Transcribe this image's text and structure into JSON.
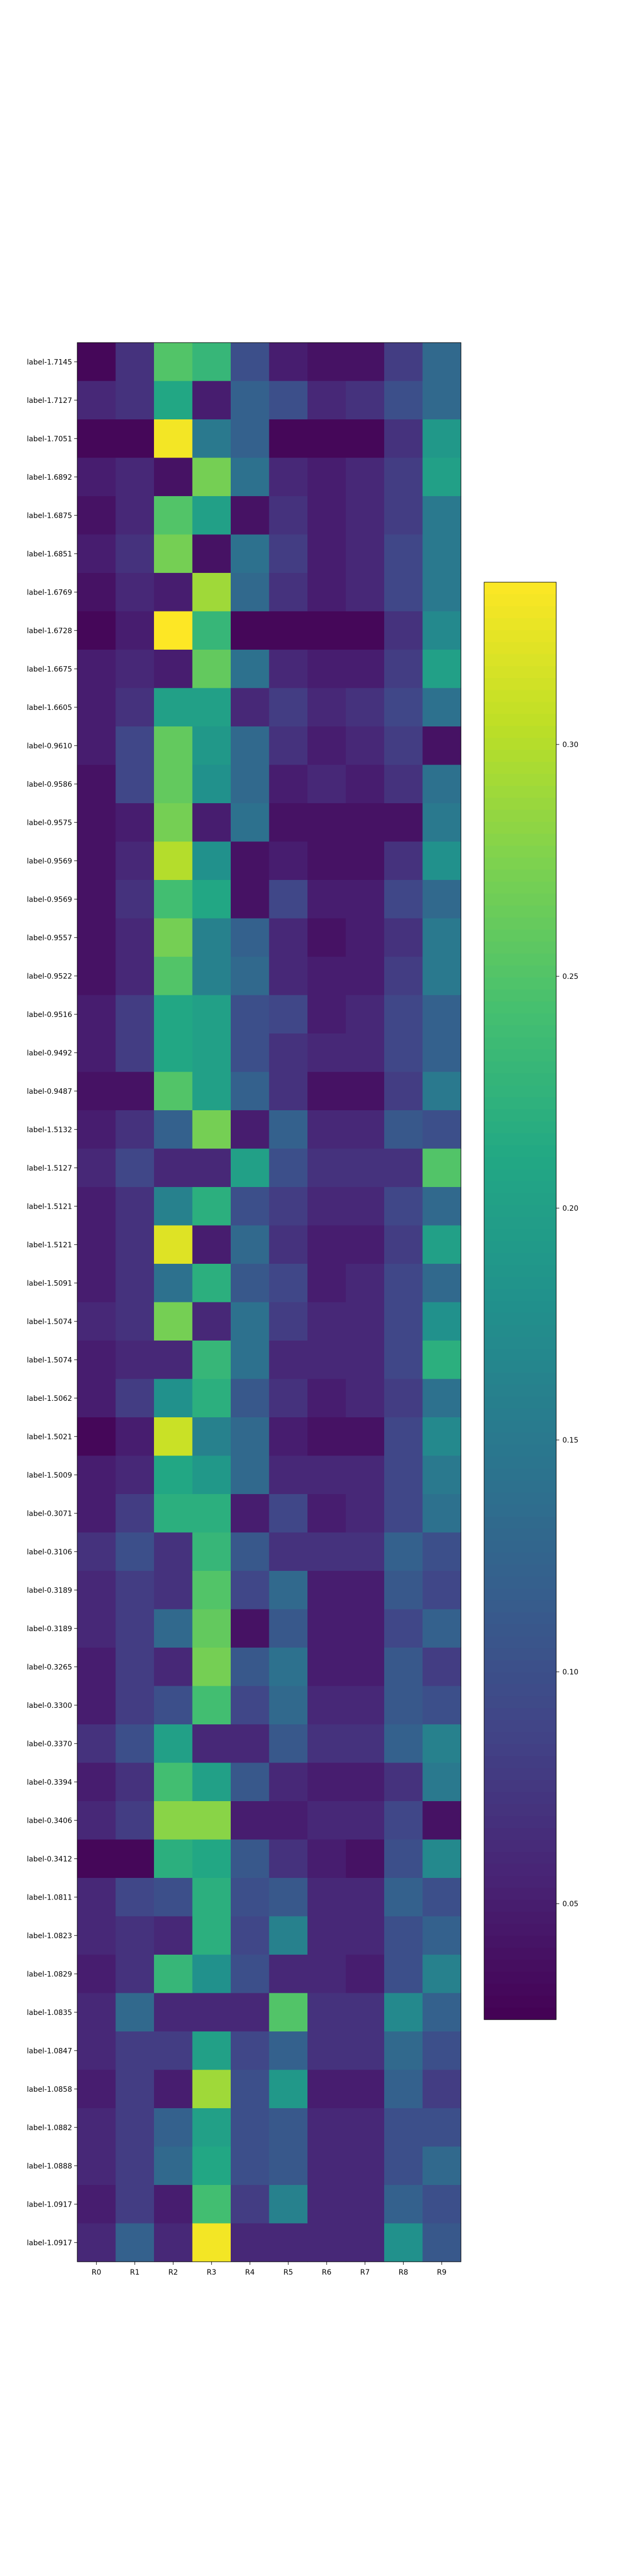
{
  "chart_data": {
    "type": "heatmap",
    "colormap": "viridis",
    "columns": [
      "R0",
      "R1",
      "R2",
      "R3",
      "R4",
      "R5",
      "R6",
      "R7",
      "R8",
      "R9"
    ],
    "rows": [
      "label-1.7145",
      "label-1.7127",
      "label-1.7051",
      "label-1.6892",
      "label-1.6875",
      "label-1.6851",
      "label-1.6769",
      "label-1.6728",
      "label-1.6675",
      "label-1.6605",
      "label-0.9610",
      "label-0.9586",
      "label-0.9575",
      "label-0.9569",
      "label-0.9569",
      "label-0.9557",
      "label-0.9522",
      "label-0.9516",
      "label-0.9492",
      "label-0.9487",
      "label-1.5132",
      "label-1.5127",
      "label-1.5121",
      "label-1.5121",
      "label-1.5091",
      "label-1.5074",
      "label-1.5074",
      "label-1.5062",
      "label-1.5021",
      "label-1.5009",
      "label-0.3071",
      "label-0.3106",
      "label-0.3189",
      "label-0.3189",
      "label-0.3265",
      "label-0.3300",
      "label-0.3370",
      "label-0.3394",
      "label-0.3406",
      "label-0.3412",
      "label-1.0811",
      "label-1.0823",
      "label-1.0829",
      "label-1.0835",
      "label-1.0847",
      "label-1.0858",
      "label-1.0882",
      "label-1.0888",
      "label-1.0917",
      "label-1.0917"
    ],
    "values": [
      [
        0.03,
        0.07,
        0.25,
        0.23,
        0.1,
        0.05,
        0.04,
        0.04,
        0.08,
        0.13
      ],
      [
        0.06,
        0.07,
        0.21,
        0.05,
        0.12,
        0.1,
        0.06,
        0.07,
        0.1,
        0.13
      ],
      [
        0.03,
        0.03,
        0.33,
        0.15,
        0.12,
        0.03,
        0.03,
        0.03,
        0.07,
        0.19
      ],
      [
        0.05,
        0.06,
        0.04,
        0.27,
        0.14,
        0.06,
        0.05,
        0.06,
        0.08,
        0.2
      ],
      [
        0.04,
        0.06,
        0.25,
        0.2,
        0.04,
        0.07,
        0.05,
        0.06,
        0.08,
        0.15
      ],
      [
        0.05,
        0.07,
        0.27,
        0.04,
        0.14,
        0.08,
        0.05,
        0.06,
        0.09,
        0.15
      ],
      [
        0.04,
        0.06,
        0.05,
        0.29,
        0.13,
        0.07,
        0.05,
        0.06,
        0.09,
        0.15
      ],
      [
        0.03,
        0.05,
        0.34,
        0.23,
        0.03,
        0.03,
        0.03,
        0.03,
        0.07,
        0.17
      ],
      [
        0.05,
        0.06,
        0.05,
        0.26,
        0.14,
        0.06,
        0.05,
        0.05,
        0.08,
        0.2
      ],
      [
        0.05,
        0.07,
        0.2,
        0.2,
        0.06,
        0.08,
        0.06,
        0.07,
        0.09,
        0.14
      ],
      [
        0.05,
        0.09,
        0.26,
        0.19,
        0.13,
        0.07,
        0.05,
        0.06,
        0.08,
        0.04
      ],
      [
        0.04,
        0.09,
        0.26,
        0.18,
        0.13,
        0.05,
        0.06,
        0.05,
        0.07,
        0.14
      ],
      [
        0.04,
        0.05,
        0.27,
        0.05,
        0.14,
        0.04,
        0.04,
        0.04,
        0.04,
        0.15
      ],
      [
        0.04,
        0.06,
        0.3,
        0.18,
        0.04,
        0.05,
        0.04,
        0.04,
        0.07,
        0.18
      ],
      [
        0.04,
        0.07,
        0.24,
        0.21,
        0.04,
        0.09,
        0.05,
        0.05,
        0.09,
        0.13
      ],
      [
        0.04,
        0.06,
        0.27,
        0.16,
        0.12,
        0.06,
        0.04,
        0.05,
        0.07,
        0.15
      ],
      [
        0.04,
        0.06,
        0.25,
        0.16,
        0.13,
        0.06,
        0.05,
        0.05,
        0.08,
        0.15
      ],
      [
        0.05,
        0.08,
        0.21,
        0.2,
        0.1,
        0.09,
        0.05,
        0.06,
        0.09,
        0.12
      ],
      [
        0.05,
        0.08,
        0.21,
        0.2,
        0.1,
        0.07,
        0.06,
        0.06,
        0.09,
        0.12
      ],
      [
        0.04,
        0.04,
        0.25,
        0.2,
        0.12,
        0.07,
        0.04,
        0.04,
        0.08,
        0.15
      ],
      [
        0.05,
        0.07,
        0.12,
        0.27,
        0.05,
        0.12,
        0.06,
        0.06,
        0.11,
        0.1
      ],
      [
        0.06,
        0.09,
        0.06,
        0.06,
        0.2,
        0.1,
        0.07,
        0.07,
        0.07,
        0.25
      ],
      [
        0.05,
        0.07,
        0.16,
        0.22,
        0.1,
        0.08,
        0.06,
        0.06,
        0.09,
        0.13
      ],
      [
        0.05,
        0.07,
        0.32,
        0.05,
        0.13,
        0.07,
        0.05,
        0.05,
        0.08,
        0.2
      ],
      [
        0.05,
        0.07,
        0.14,
        0.22,
        0.11,
        0.09,
        0.05,
        0.06,
        0.09,
        0.13
      ],
      [
        0.06,
        0.07,
        0.27,
        0.06,
        0.14,
        0.08,
        0.06,
        0.06,
        0.09,
        0.18
      ],
      [
        0.05,
        0.06,
        0.06,
        0.23,
        0.14,
        0.06,
        0.06,
        0.06,
        0.09,
        0.22
      ],
      [
        0.05,
        0.08,
        0.18,
        0.22,
        0.11,
        0.07,
        0.05,
        0.06,
        0.08,
        0.14
      ],
      [
        0.03,
        0.05,
        0.31,
        0.16,
        0.13,
        0.05,
        0.04,
        0.04,
        0.09,
        0.17
      ],
      [
        0.05,
        0.06,
        0.21,
        0.19,
        0.13,
        0.06,
        0.06,
        0.06,
        0.09,
        0.15
      ],
      [
        0.05,
        0.08,
        0.22,
        0.22,
        0.05,
        0.09,
        0.05,
        0.06,
        0.09,
        0.14
      ],
      [
        0.07,
        0.1,
        0.07,
        0.23,
        0.11,
        0.07,
        0.07,
        0.07,
        0.12,
        0.1
      ],
      [
        0.06,
        0.08,
        0.07,
        0.25,
        0.09,
        0.13,
        0.05,
        0.05,
        0.11,
        0.09
      ],
      [
        0.06,
        0.08,
        0.13,
        0.26,
        0.04,
        0.11,
        0.05,
        0.05,
        0.09,
        0.12
      ],
      [
        0.05,
        0.08,
        0.06,
        0.27,
        0.11,
        0.14,
        0.05,
        0.05,
        0.11,
        0.08
      ],
      [
        0.05,
        0.08,
        0.1,
        0.24,
        0.09,
        0.13,
        0.06,
        0.06,
        0.11,
        0.1
      ],
      [
        0.07,
        0.1,
        0.2,
        0.06,
        0.06,
        0.11,
        0.07,
        0.07,
        0.12,
        0.16
      ],
      [
        0.05,
        0.07,
        0.24,
        0.2,
        0.11,
        0.06,
        0.05,
        0.05,
        0.07,
        0.15
      ],
      [
        0.06,
        0.08,
        0.28,
        0.28,
        0.05,
        0.05,
        0.06,
        0.06,
        0.09,
        0.04
      ],
      [
        0.03,
        0.03,
        0.22,
        0.21,
        0.11,
        0.07,
        0.05,
        0.04,
        0.1,
        0.17
      ],
      [
        0.06,
        0.09,
        0.1,
        0.22,
        0.1,
        0.11,
        0.06,
        0.06,
        0.12,
        0.1
      ],
      [
        0.06,
        0.07,
        0.06,
        0.22,
        0.09,
        0.16,
        0.06,
        0.06,
        0.1,
        0.12
      ],
      [
        0.05,
        0.07,
        0.23,
        0.18,
        0.1,
        0.06,
        0.06,
        0.05,
        0.1,
        0.16
      ],
      [
        0.06,
        0.13,
        0.06,
        0.06,
        0.06,
        0.25,
        0.07,
        0.07,
        0.17,
        0.12
      ],
      [
        0.06,
        0.08,
        0.08,
        0.2,
        0.09,
        0.12,
        0.07,
        0.07,
        0.13,
        0.1
      ],
      [
        0.05,
        0.08,
        0.05,
        0.29,
        0.1,
        0.19,
        0.05,
        0.05,
        0.12,
        0.08
      ],
      [
        0.06,
        0.08,
        0.12,
        0.2,
        0.1,
        0.11,
        0.06,
        0.06,
        0.1,
        0.1
      ],
      [
        0.06,
        0.08,
        0.13,
        0.21,
        0.1,
        0.11,
        0.06,
        0.06,
        0.1,
        0.13
      ],
      [
        0.05,
        0.08,
        0.05,
        0.24,
        0.08,
        0.16,
        0.06,
        0.06,
        0.12,
        0.1
      ],
      [
        0.06,
        0.12,
        0.06,
        0.33,
        0.06,
        0.06,
        0.06,
        0.06,
        0.18,
        0.11
      ]
    ],
    "colorbar": {
      "vmin": 0.025,
      "vmax": 0.335,
      "ticks": [
        0.05,
        0.1,
        0.15,
        0.2,
        0.25,
        0.3
      ],
      "tick_labels": [
        "0.05",
        "0.10",
        "0.15",
        "0.20",
        "0.25",
        "0.30"
      ]
    },
    "title": "",
    "xlabel": "",
    "ylabel": ""
  }
}
